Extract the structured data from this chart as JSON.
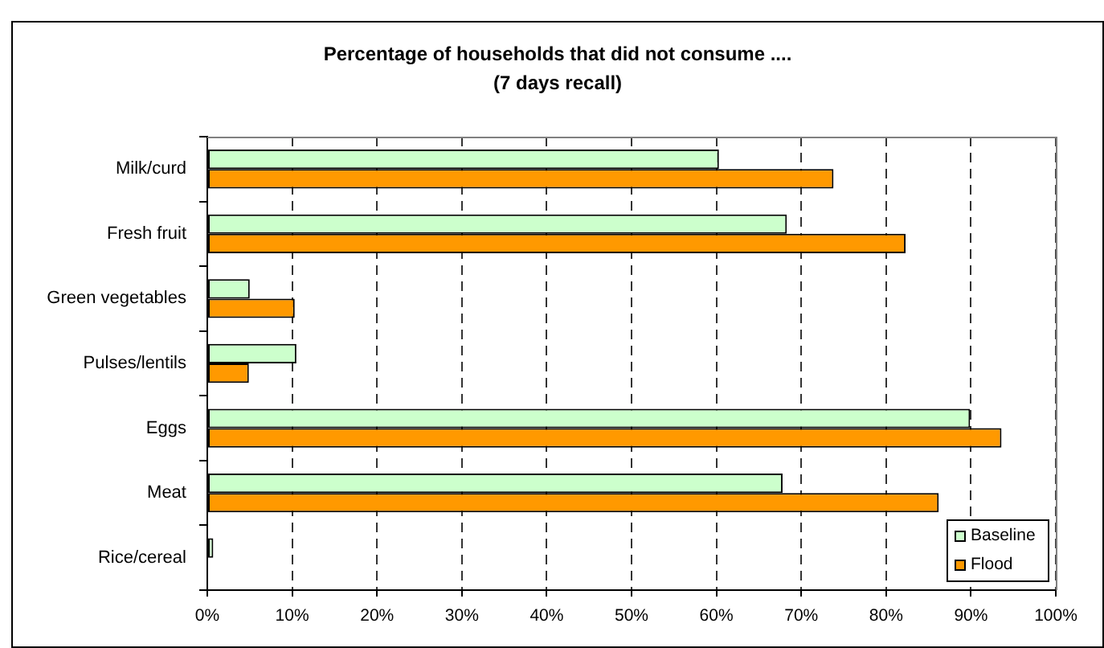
{
  "chart_data": {
    "type": "bar",
    "orientation": "horizontal",
    "title": "Percentage of households that did not consume ....",
    "subtitle": "(7 days recall)",
    "categories": [
      "Milk/curd",
      "Fresh fruit",
      "Green vegetables",
      "Pulses/lentils",
      "Eggs",
      "Meat",
      "Rice/cereal"
    ],
    "series": [
      {
        "name": "Baseline",
        "color": "#ccffcc",
        "values": [
          60.3,
          68.3,
          5.0,
          10.5,
          89.9,
          67.8,
          0.7
        ]
      },
      {
        "name": "Flood",
        "color": "#ff9900",
        "values": [
          73.8,
          82.3,
          10.3,
          4.9,
          93.6,
          86.2,
          0
        ]
      }
    ],
    "xlim": [
      0,
      100
    ],
    "xticks": [
      {
        "value": 0,
        "label": "0%"
      },
      {
        "value": 10,
        "label": "10%"
      },
      {
        "value": 20,
        "label": "20%"
      },
      {
        "value": 30,
        "label": "30%"
      },
      {
        "value": 40,
        "label": "40%"
      },
      {
        "value": 50,
        "label": "50%"
      },
      {
        "value": 60,
        "label": "60%"
      },
      {
        "value": 70,
        "label": "70%"
      },
      {
        "value": 80,
        "label": "80%"
      },
      {
        "value": 90,
        "label": "90%"
      },
      {
        "value": 100,
        "label": "100%"
      }
    ],
    "grid": "x",
    "legend": "bottom right"
  }
}
